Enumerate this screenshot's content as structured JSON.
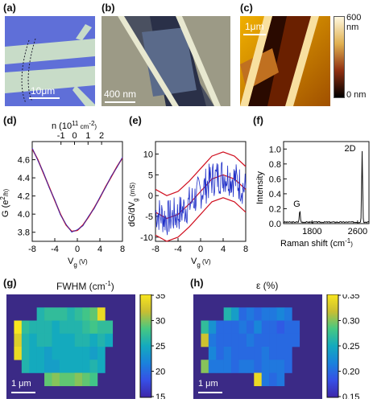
{
  "panels": {
    "a": {
      "label": "(a)",
      "scalebar": "10μm"
    },
    "b": {
      "label": "(b)",
      "scalebar": "400 nm"
    },
    "c": {
      "label": "(c)",
      "scalebar": "1μm",
      "cbar_max": "600 nm",
      "cbar_min": "0 nm"
    },
    "d": {
      "label": "(d)"
    },
    "e": {
      "label": "(e)"
    },
    "f": {
      "label": "(f)"
    },
    "g": {
      "label": "(g)",
      "title": "FWHM (cm",
      "title_sup": "-1",
      "title_end": ")",
      "scalebar": "1 μm",
      "cbar_ticks": [
        "35",
        "30",
        "25",
        "20",
        "15"
      ]
    },
    "h": {
      "label": "(h)",
      "title": "ε (%)",
      "scalebar": "1 μm",
      "cbar_ticks": [
        "0.35",
        "0.30",
        "0.25",
        "0.20",
        "0.15"
      ]
    }
  },
  "colors": {
    "fit_red": "#d01020",
    "data_blue": "#2030c8",
    "substrate_blue": "#5f6fd8",
    "heatmap_bg": "#3b2a86"
  },
  "chart_data": [
    {
      "id": "d",
      "type": "line",
      "xlabel": "V",
      "xlabel_sub": "g",
      "xlabel_unit": " (V)",
      "ylabel": "G (e",
      "ylabel_sup": "2",
      "ylabel_end": "/h)",
      "toplabel": "n (10",
      "toplabel_sup": "11",
      "toplabel_end": " cm",
      "toplabel_sup2": "-2",
      "toplabel_close": ")",
      "xlim": [
        -8,
        8
      ],
      "ylim": [
        3.7,
        4.8
      ],
      "xticks": [
        "-8",
        "-4",
        "0",
        "4",
        "8"
      ],
      "yticks": [
        "4.6",
        "4.4",
        "4.2",
        "4.0",
        "3.8"
      ],
      "top_ticks": [
        "-1",
        "0",
        "1",
        "2"
      ],
      "top_tick_values": [
        -1,
        0,
        1,
        2
      ],
      "series": [
        {
          "x": [
            -8,
            -7,
            -6,
            -5,
            -4,
            -3,
            -2,
            -1,
            0,
            1,
            2,
            3,
            4,
            5,
            6,
            7,
            8
          ],
          "values": [
            4.72,
            4.6,
            4.45,
            4.3,
            4.15,
            4.0,
            3.88,
            3.81,
            3.82,
            3.88,
            3.97,
            4.07,
            4.18,
            4.3,
            4.41,
            4.52,
            4.62
          ]
        }
      ]
    },
    {
      "id": "e",
      "type": "line",
      "xlabel": "V",
      "xlabel_sub": "g",
      "xlabel_unit": " (V)",
      "ylabel": "dG/dV",
      "ylabel_sub": "g",
      "ylabel_unit": " (mS)",
      "xlim": [
        -8,
        8
      ],
      "ylim": [
        -11,
        13
      ],
      "xticks": [
        "-8",
        "-4",
        "0",
        "4",
        "8"
      ],
      "yticks": [
        "10",
        "5",
        "0",
        "-5",
        "-10"
      ],
      "fit_center": {
        "x": [
          -8,
          -6,
          -4,
          -2,
          0,
          2,
          4,
          6,
          8
        ],
        "values": [
          -4,
          -5.5,
          -4.5,
          -2,
          1,
          4,
          5,
          4,
          1.5
        ]
      },
      "band": 5.5
    },
    {
      "id": "f",
      "type": "line",
      "xlabel": "Raman shift (cm",
      "xlabel_sup": "-1",
      "xlabel_end": ")",
      "ylabel": "Intensity",
      "xlim": [
        1300,
        2800
      ],
      "ylim": [
        0,
        1.1
      ],
      "xticks": [
        "1800",
        "2600"
      ],
      "yticks": [
        "1.0",
        "0.8",
        "0.6",
        "0.4",
        "0.2",
        "0.0"
      ],
      "peaks": [
        {
          "name": "G",
          "x": 1585,
          "y": 0.16
        },
        {
          "name": "2D",
          "x": 2680,
          "y": 0.95
        }
      ]
    }
  ],
  "heatmaps": {
    "g": {
      "vmin": 15,
      "vmax": 35,
      "rows": [
        [
          0,
          0,
          0,
          0,
          0,
          0,
          0,
          0,
          0,
          0,
          0,
          0,
          0,
          0,
          0,
          0,
          0
        ],
        [
          0,
          0,
          0,
          0,
          26,
          27,
          27,
          27,
          26,
          27,
          28,
          29,
          34,
          0,
          0,
          0,
          0
        ],
        [
          0,
          35,
          27,
          26,
          26,
          26,
          25,
          26,
          26,
          26,
          27,
          28,
          27,
          27,
          0,
          0,
          0
        ],
        [
          0,
          33,
          26,
          25,
          26,
          26,
          25,
          25,
          25,
          26,
          26,
          25,
          26,
          25,
          0,
          0,
          0
        ],
        [
          0,
          34,
          26,
          25,
          25,
          24,
          25,
          25,
          25,
          25,
          25,
          24,
          25,
          0,
          0,
          0,
          0
        ],
        [
          0,
          0,
          26,
          25,
          25,
          24,
          24,
          25,
          25,
          25,
          25,
          26,
          25,
          0,
          0,
          0,
          0
        ],
        [
          0,
          0,
          0,
          0,
          0,
          29,
          30,
          29,
          29,
          30,
          29,
          28,
          0,
          0,
          0,
          0,
          0
        ],
        [
          0,
          0,
          0,
          0,
          0,
          0,
          0,
          0,
          0,
          0,
          0,
          0,
          0,
          0,
          0,
          0,
          0
        ]
      ]
    },
    "h": {
      "vmin": 0.15,
      "vmax": 0.35,
      "rows": [
        [
          0,
          0,
          0,
          0,
          0,
          0,
          0,
          0,
          0,
          0,
          0,
          0,
          0,
          0,
          0,
          0,
          0
        ],
        [
          0,
          0,
          0,
          0,
          0.26,
          0.24,
          0.2,
          0.21,
          0.2,
          0.21,
          0.21,
          0.22,
          0.21,
          0,
          0,
          0,
          0
        ],
        [
          0,
          0.27,
          0.23,
          0.2,
          0.2,
          0.2,
          0.21,
          0.2,
          0.22,
          0.2,
          0.2,
          0.19,
          0.2,
          0.2,
          0,
          0,
          0
        ],
        [
          0,
          0.32,
          0.21,
          0.2,
          0.2,
          0.2,
          0.2,
          0.21,
          0.2,
          0.2,
          0.2,
          0.2,
          0.2,
          0.2,
          0,
          0,
          0
        ],
        [
          0,
          0,
          0.22,
          0.2,
          0.21,
          0.2,
          0.2,
          0.2,
          0.2,
          0.21,
          0.2,
          0.2,
          0.2,
          0,
          0,
          0,
          0
        ],
        [
          0,
          0.3,
          0.21,
          0.21,
          0.21,
          0.2,
          0.21,
          0.21,
          0.2,
          0.21,
          0.21,
          0.21,
          0.2,
          0,
          0,
          0,
          0
        ],
        [
          0,
          0,
          0,
          0,
          0,
          0,
          0,
          0,
          0.34,
          0.21,
          0.2,
          0.21,
          0,
          0,
          0,
          0,
          0
        ],
        [
          0,
          0,
          0,
          0,
          0,
          0,
          0,
          0,
          0,
          0,
          0,
          0,
          0,
          0,
          0,
          0,
          0
        ]
      ]
    }
  }
}
